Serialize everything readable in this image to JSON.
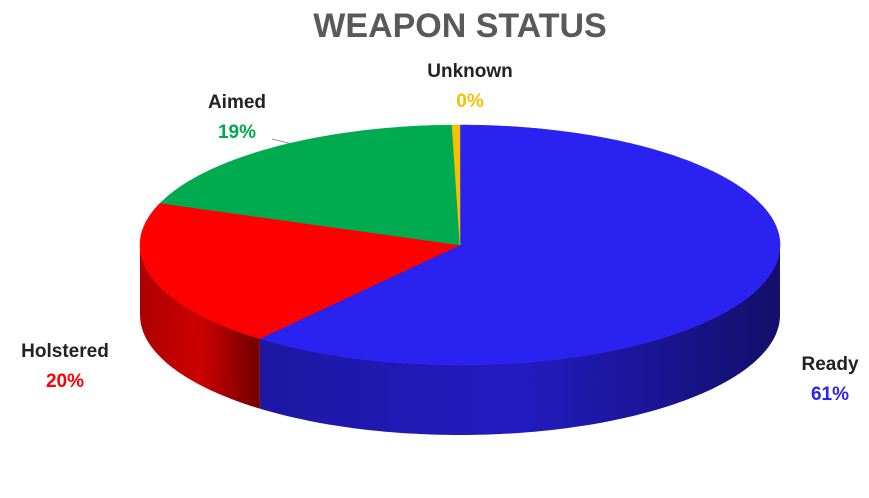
{
  "chart_data": {
    "type": "pie",
    "title": "WEAPON STATUS",
    "categories": [
      "Ready",
      "Holstered",
      "Aimed",
      "Unknown"
    ],
    "values": [
      61,
      20,
      19,
      0.4
    ],
    "value_labels": [
      "61%",
      "20%",
      "19%",
      "0%"
    ],
    "colors": [
      "#2a22f0",
      "#ff0000",
      "#00aa4e",
      "#f5c000"
    ]
  }
}
